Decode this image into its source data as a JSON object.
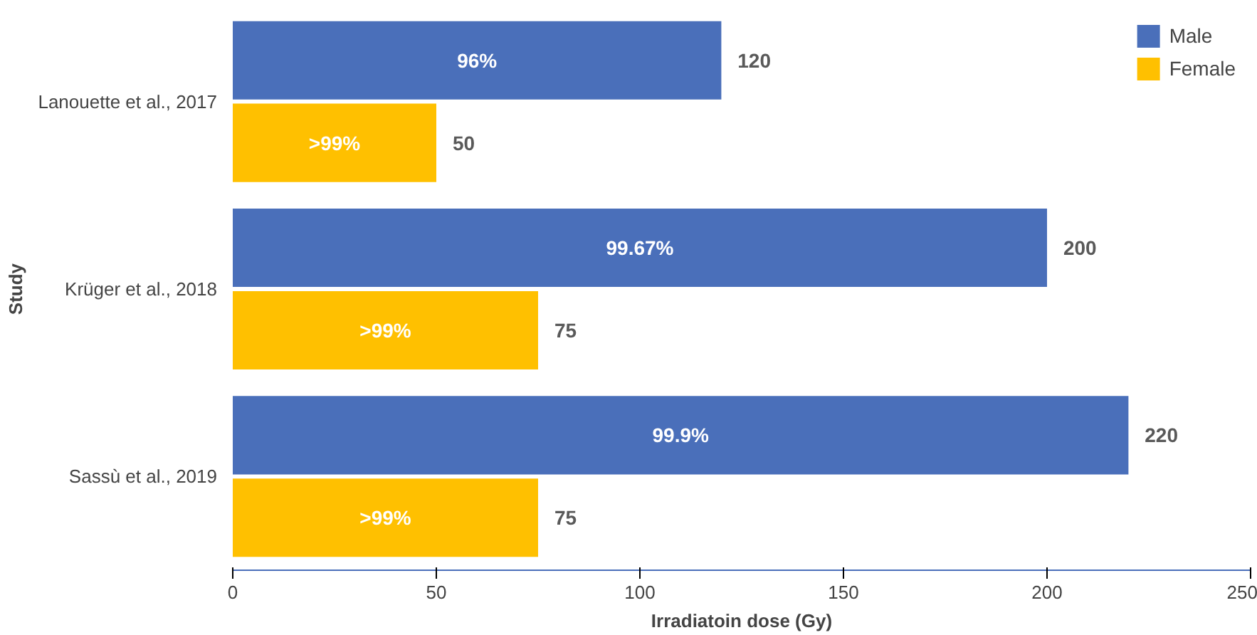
{
  "chart_data": {
    "type": "bar",
    "orientation": "horizontal",
    "xlabel": "Irradiatoin dose (Gy)",
    "ylabel": "Study",
    "categories": [
      "Lanouette et al., 2017",
      "Krüger et al., 2018",
      "Sassù et al., 2019"
    ],
    "series": [
      {
        "name": "Male",
        "color": "#4a6fba",
        "values": [
          120,
          200,
          220
        ],
        "value_labels": [
          "120",
          "200",
          "220"
        ]
      },
      {
        "name": "Female",
        "color": "#ffc000",
        "values": [
          50,
          75,
          75
        ],
        "value_labels": [
          "50",
          "75",
          "75"
        ]
      }
    ],
    "annotations": [
      {
        "text": "96%",
        "x": 60,
        "y": "Lanouette et al., 2017"
      },
      {
        "text": ">99%",
        "x": 25,
        "y": "Lanouette et al., 2017"
      },
      {
        "text": "99.67%",
        "x": 100,
        "y": "Krüger et al., 2018"
      },
      {
        "text": ">99%",
        "x": 37.5,
        "y": "Krüger et al., 2018"
      },
      {
        "text": "99.9%",
        "x": 110,
        "y": "Sassù et al., 2019"
      },
      {
        "text": ">99%",
        "x": 37.5,
        "y": "Sassù et al., 2019"
      }
    ],
    "xlim": [
      0,
      250
    ],
    "xticks": [
      0,
      50,
      100,
      150,
      200,
      250
    ],
    "legend": "top right",
    "grid": false
  }
}
